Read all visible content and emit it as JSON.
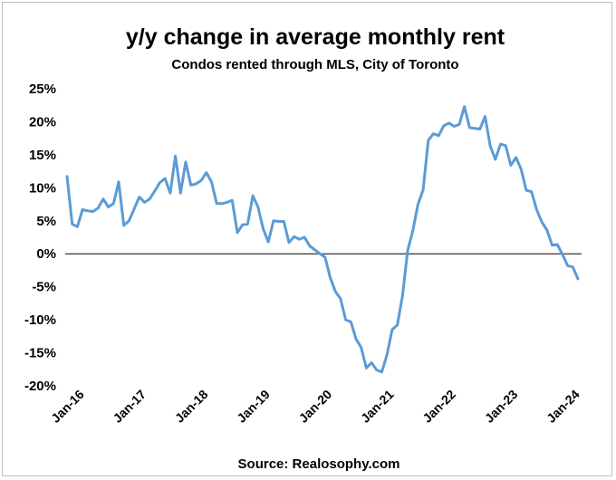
{
  "chart_data": {
    "type": "line",
    "title": "y/y change in average monthly rent",
    "subtitle": "Condos rented through MLS, City of Toronto",
    "source": "Source: Realosophy.com",
    "xlabel": "",
    "ylabel": "",
    "ylim": [
      -20,
      25
    ],
    "y_ticks": [
      "25%",
      "20%",
      "15%",
      "10%",
      "5%",
      "0%",
      "-5%",
      "-10%",
      "-15%",
      "-20%"
    ],
    "y_tick_values": [
      25,
      20,
      15,
      10,
      5,
      0,
      -5,
      -10,
      -15,
      -20
    ],
    "x_tick_labels": [
      "Jan-16",
      "Jan-17",
      "Jan-18",
      "Jan-19",
      "Jan-20",
      "Jan-21",
      "Jan-22",
      "Jan-23",
      "Jan-24"
    ],
    "x_tick_month_index": [
      0,
      12,
      24,
      36,
      48,
      60,
      72,
      84,
      96
    ],
    "grid": false,
    "legend": "none",
    "colors": {
      "line": "#5B9BD5",
      "zero_line": "#000000",
      "axis_text": "#000000"
    },
    "series": [
      {
        "values": [
          11.7,
          4.5,
          4.1,
          6.7,
          6.5,
          6.4,
          6.9,
          8.3,
          7.1,
          7.6,
          10.9,
          4.3,
          5.0,
          6.8,
          8.6,
          7.8,
          8.3,
          9.5,
          10.8,
          11.4,
          9.2,
          14.8,
          9.2,
          13.9,
          10.4,
          10.6,
          11.1,
          12.3,
          10.9,
          7.6,
          7.6,
          7.8,
          8.1,
          3.2,
          4.4,
          4.5,
          8.8,
          7.1,
          3.8,
          1.8,
          5.0,
          4.9,
          4.9,
          1.7,
          2.6,
          2.2,
          2.5,
          1.2,
          0.6,
          0.0,
          -0.5,
          -3.6,
          -5.7,
          -6.8,
          -10.0,
          -10.3,
          -12.9,
          -14.2,
          -17.3,
          -16.5,
          -17.6,
          -17.9,
          -15.3,
          -11.5,
          -10.8,
          -6.4,
          0.5,
          3.5,
          7.5,
          9.7,
          17.2,
          18.2,
          17.9,
          19.4,
          19.8,
          19.3,
          19.6,
          22.3,
          19.1,
          19.0,
          18.9,
          20.8,
          16.3,
          14.3,
          16.6,
          16.4,
          13.4,
          14.6,
          12.8,
          9.6,
          9.4,
          6.7,
          4.8,
          3.6,
          1.3,
          1.4,
          -0.1,
          -1.8,
          -2.0,
          -3.8
        ]
      }
    ]
  }
}
